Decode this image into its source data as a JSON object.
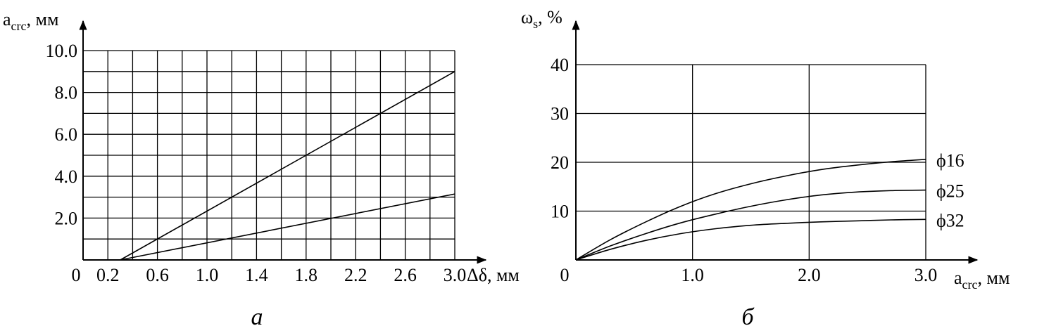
{
  "chart_data": [
    {
      "type": "line",
      "caption": "а",
      "ylabel": "a",
      "ylabel_sub": "crc",
      "ylabel_unit": ", мм",
      "xlabel": "Δδ, мм",
      "xlim": [
        0,
        3.0
      ],
      "ylim": [
        0,
        10.0
      ],
      "x_ticks": [
        0.2,
        0.6,
        1.0,
        1.4,
        1.8,
        2.2,
        2.6,
        3.0
      ],
      "x_tick_labels": [
        "0.2",
        "0.6",
        "1.0",
        "1.4",
        "1.8",
        "2.2",
        "2.6",
        "3.0"
      ],
      "y_ticks": [
        2.0,
        4.0,
        6.0,
        8.0,
        10.0
      ],
      "y_tick_labels": [
        "2.0",
        "4.0",
        "6.0",
        "8.0",
        "10.0"
      ],
      "origin_label": "0",
      "grid": true,
      "series": [
        {
          "x": [
            0.3,
            3.0
          ],
          "y": [
            0,
            9.0
          ]
        },
        {
          "x": [
            0.3,
            3.0
          ],
          "y": [
            0,
            3.15
          ]
        }
      ]
    },
    {
      "type": "line",
      "caption": "б",
      "ylabel": "ω",
      "ylabel_sub": "s",
      "ylabel_unit": ", %",
      "xlabel": "a",
      "xlabel_sub": "crc",
      "xlabel_unit": ", мм",
      "xlim": [
        0,
        3.0
      ],
      "ylim": [
        0,
        40
      ],
      "x_ticks": [
        1.0,
        2.0,
        3.0
      ],
      "x_tick_labels": [
        "1.0",
        "2.0",
        "3.0"
      ],
      "y_ticks": [
        10,
        20,
        30,
        40
      ],
      "y_tick_labels": [
        "10",
        "20",
        "30",
        "40"
      ],
      "origin_label": "0",
      "grid": true,
      "series": [
        {
          "name": "ϕ16",
          "x": [
            0,
            0.3,
            0.6,
            0.9,
            1.2,
            1.5,
            1.8,
            2.1,
            2.4,
            2.7,
            3.0
          ],
          "y": [
            0,
            4.2,
            7.8,
            11.0,
            13.6,
            15.6,
            17.2,
            18.5,
            19.4,
            20.1,
            20.6
          ]
        },
        {
          "name": "ϕ25",
          "x": [
            0,
            0.3,
            0.6,
            0.9,
            1.2,
            1.5,
            1.8,
            2.1,
            2.4,
            2.7,
            3.0
          ],
          "y": [
            0,
            2.9,
            5.4,
            7.6,
            9.4,
            11.0,
            12.3,
            13.3,
            13.9,
            14.2,
            14.3
          ]
        },
        {
          "name": "ϕ32",
          "x": [
            0,
            0.3,
            0.6,
            0.9,
            1.2,
            1.5,
            1.8,
            2.1,
            2.4,
            2.7,
            3.0
          ],
          "y": [
            0,
            2.2,
            4.0,
            5.4,
            6.4,
            7.1,
            7.5,
            7.8,
            8.0,
            8.2,
            8.3
          ]
        }
      ]
    }
  ]
}
